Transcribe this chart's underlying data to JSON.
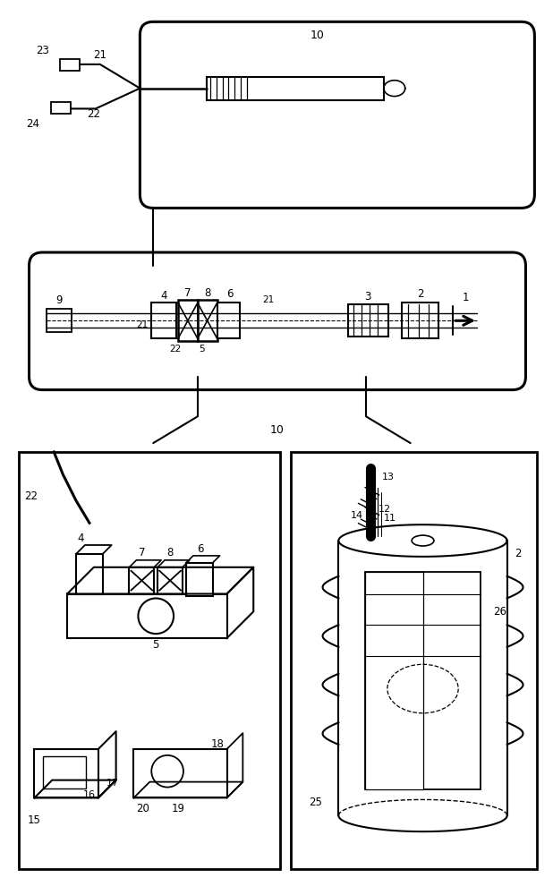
{
  "bg_color": "#ffffff",
  "line_color": "#000000",
  "figure_width": 6.18,
  "figure_height": 10.0
}
